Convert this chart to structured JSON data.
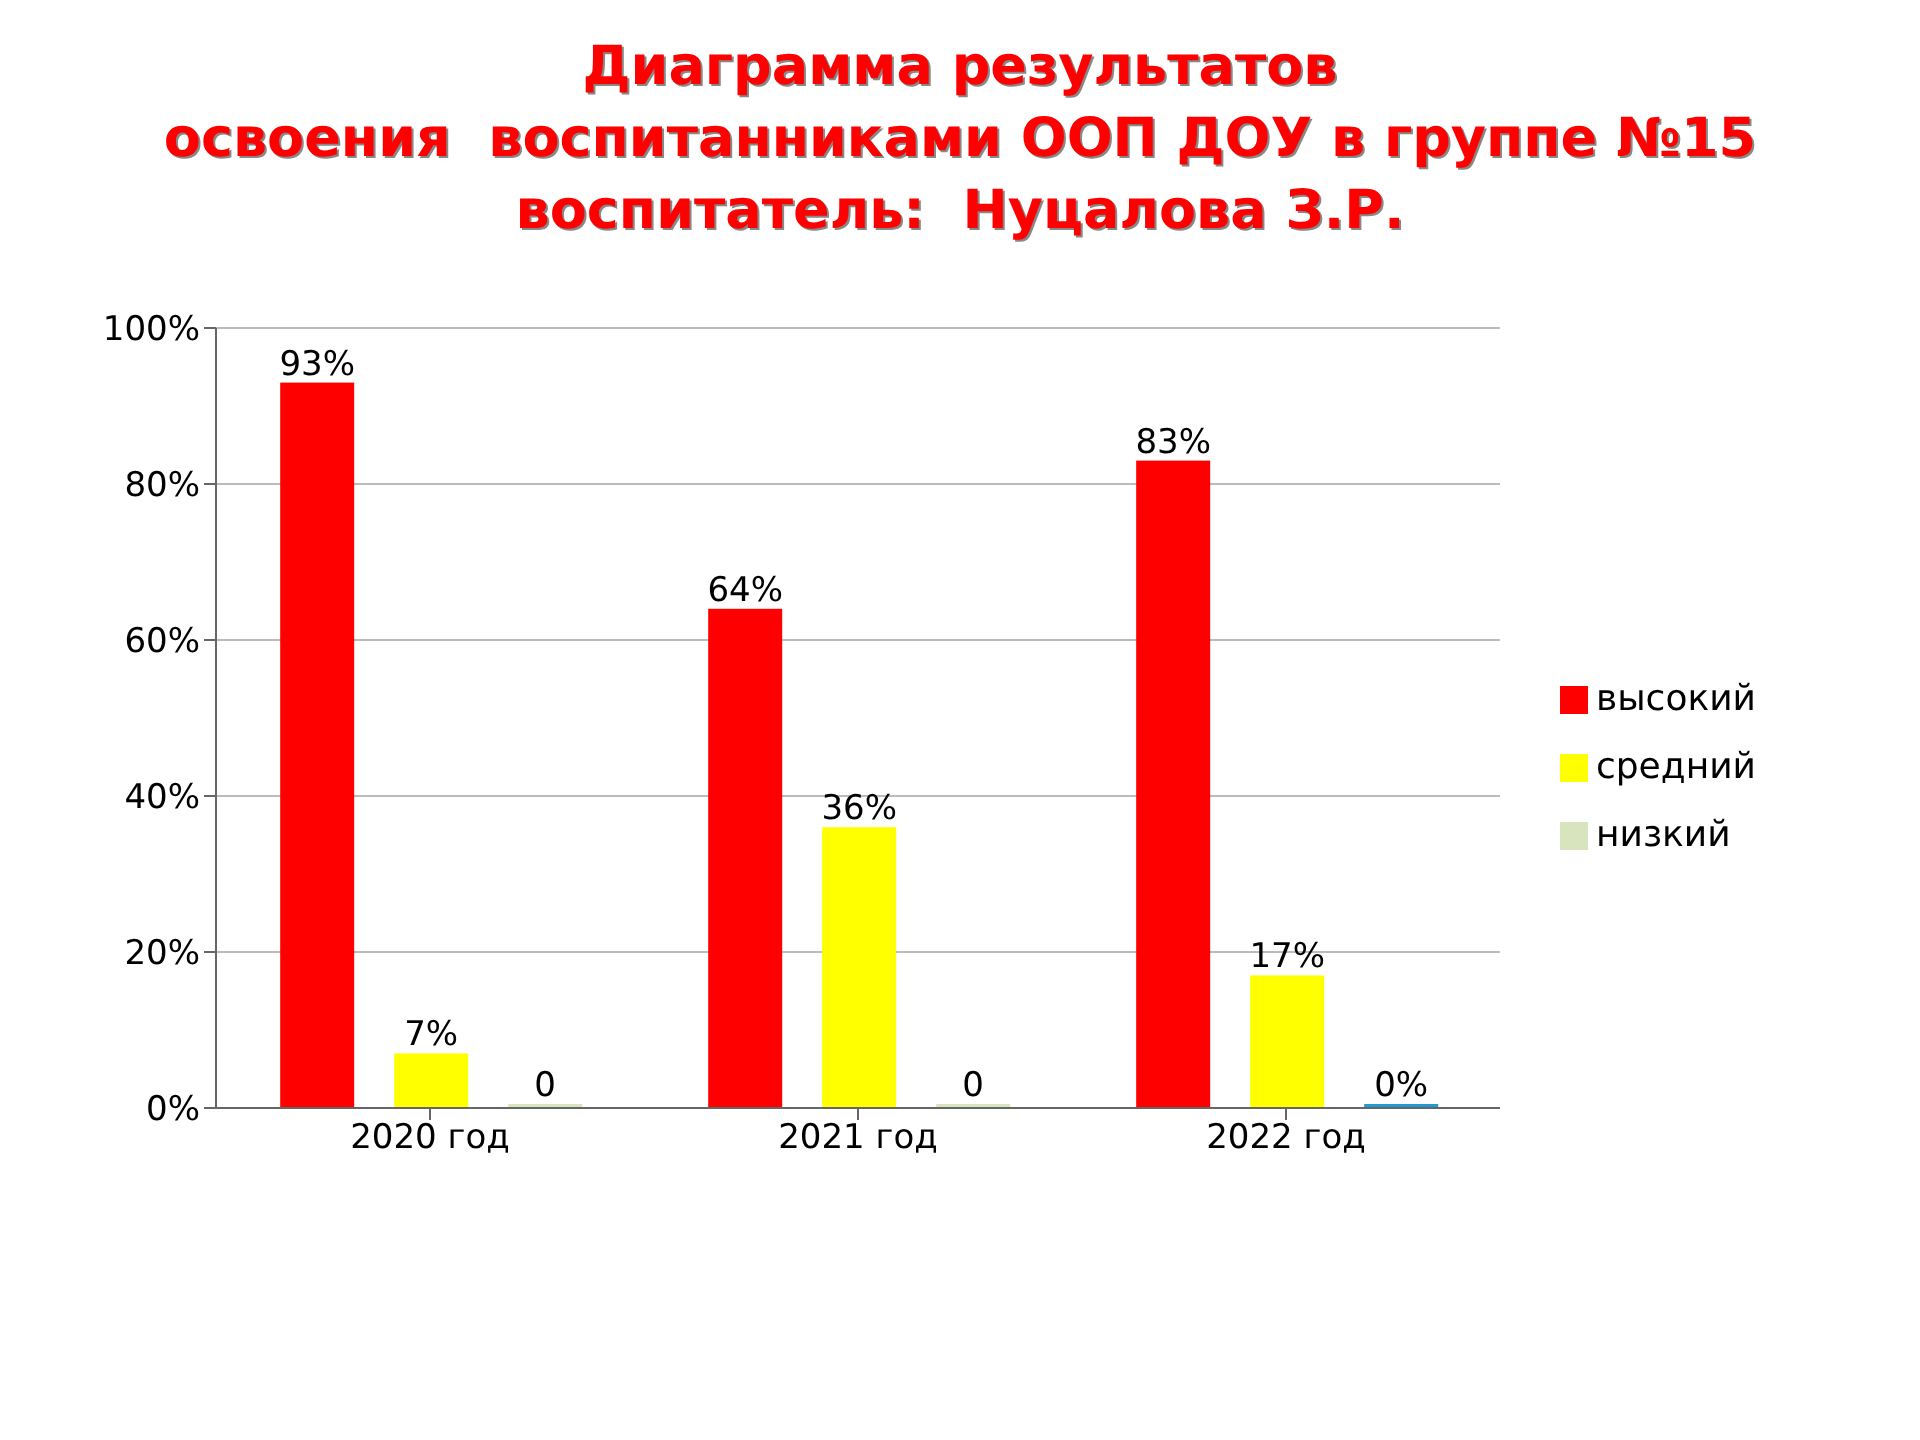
{
  "chart_data": {
    "type": "bar",
    "title": "Диаграмма результатов\nосвоения  воспитанниками ООП ДОУ в группе №15\nвоспитатель:  Нуцалова З.Р.",
    "categories": [
      "2020 год",
      "2021 год",
      "2022 год"
    ],
    "series": [
      {
        "name": "высокий",
        "color": "#ff0000",
        "values": [
          93,
          64,
          83
        ],
        "value_labels": [
          "93%",
          "64%",
          "83%"
        ]
      },
      {
        "name": "средний",
        "color": "#ffff00",
        "values": [
          7,
          36,
          17
        ],
        "value_labels": [
          "7%",
          "36%",
          "17%"
        ]
      },
      {
        "name": "низкий",
        "color": "#d7e4bd",
        "colors": [
          "#d7e4bd",
          "#d7e4bd",
          "#1f9bd2"
        ],
        "values": [
          0,
          0,
          0
        ],
        "value_labels": [
          "0",
          "0",
          "0%"
        ]
      }
    ],
    "ylim": [
      0,
      100
    ],
    "yticks": [
      {
        "value": 0,
        "label": "0%"
      },
      {
        "value": 20,
        "label": "20%"
      },
      {
        "value": 40,
        "label": "40%"
      },
      {
        "value": 60,
        "label": "60%"
      },
      {
        "value": 80,
        "label": "80%"
      },
      {
        "value": 100,
        "label": "100%"
      }
    ],
    "grid": "y",
    "legend": "right"
  }
}
